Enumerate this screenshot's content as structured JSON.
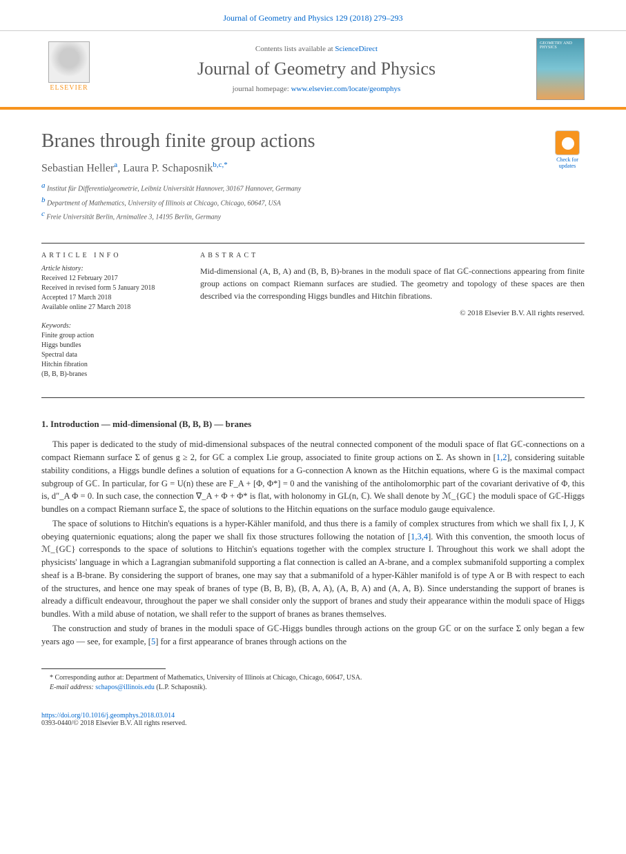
{
  "header": {
    "journal_ref": "Journal of Geometry and Physics 129 (2018) 279–293",
    "contents_text": "Contents lists available at ",
    "contents_link": "ScienceDirect",
    "journal_name": "Journal of Geometry and Physics",
    "homepage_label": "journal homepage: ",
    "homepage_url": "www.elsevier.com/locate/geomphys",
    "publisher": "ELSEVIER",
    "cover_label": "GEOMETRY AND PHYSICS"
  },
  "updates": {
    "text": "Check for updates"
  },
  "paper": {
    "title": "Branes through finite group actions",
    "authors": [
      {
        "name": "Sebastian Heller",
        "sup": "a"
      },
      {
        "name": "Laura P. Schaposnik",
        "sup": "b,c,*"
      }
    ],
    "affiliations": [
      "Institut für Differentialgeometrie, Leibniz Universität Hannover, 30167 Hannover, Germany",
      "Department of Mathematics, University of Illinois at Chicago, Chicago, 60647, USA",
      "Freie Universität Berlin, Arnimallee 3, 14195 Berlin, Germany"
    ],
    "aff_markers": [
      "a",
      "b",
      "c"
    ]
  },
  "meta": {
    "info_head": "ARTICLE INFO",
    "abstract_head": "ABSTRACT",
    "history_head": "Article history:",
    "history": [
      "Received 12 February 2017",
      "Received in revised form 5 January 2018",
      "Accepted 17 March 2018",
      "Available online 27 March 2018"
    ],
    "keywords_head": "Keywords:",
    "keywords": [
      "Finite group action",
      "Higgs bundles",
      "Spectral data",
      "Hitchin fibration",
      "(B, B, B)-branes"
    ],
    "abstract": "Mid-dimensional (A, B, A) and (B, B, B)-branes in the moduli space of flat Gℂ-connections appearing from finite group actions on compact Riemann surfaces are studied. The geometry and topology of these spaces are then described via the corresponding Higgs bundles and Hitchin fibrations.",
    "copyright": "© 2018 Elsevier B.V. All rights reserved."
  },
  "body": {
    "section_title": "1. Introduction — mid-dimensional (B, B, B) — branes",
    "p1": "This paper is dedicated to the study of mid-dimensional subspaces  of the neutral connected component of the moduli space of flat Gℂ-connections on a compact Riemann surface Σ of genus g ≥ 2, for Gℂ a complex Lie group, associated to finite group actions on Σ. As shown in [1,2], considering suitable stability conditions, a Higgs bundle defines a solution of equations for a G-connection A known as the Hitchin equations, where G is the maximal compact subgroup of Gℂ. In particular, for G = U(n) these are F_A + [Φ, Φ*] = 0 and the vanishing of the antiholomorphic part of the covariant derivative of Φ, this is, d″_A Φ = 0. In such case, the connection ∇_A + Φ + Φ* is flat, with holonomy in GL(n, ℂ). We shall denote by ℳ_{Gℂ} the moduli space of Gℂ-Higgs bundles on a compact Riemann surface Σ, the space of solutions to the Hitchin equations on the surface modulo gauge equivalence.",
    "p2": "The space of solutions to Hitchin's equations is a hyper-Kähler manifold, and thus there is a family of complex structures from which we shall fix I, J, K obeying quaternionic equations; along the paper we shall fix those structures following the notation of [1,3,4]. With this convention, the smooth locus of ℳ_{Gℂ} corresponds to the space of solutions to Hitchin's equations together with the complex structure I. Throughout this work we shall adopt the physicists' language in which a Lagrangian submanifold supporting a flat connection is called an A-brane, and a complex submanifold supporting a complex sheaf is a B-brane. By considering the support of branes, one may say that a submanifold of a hyper-Kähler manifold is of type A or B with respect to each of the structures, and hence one may speak of branes of type (B, B, B), (B, A, A), (A, B, A) and (A, A, B). Since understanding the support of branes is already a difficult endeavour, throughout the paper we shall consider only the support of branes and study their appearance within the moduli space of Higgs bundles. With a mild abuse of notation, we shall refer to the support of branes as branes themselves.",
    "p3": "The construction and study of branes in the moduli space of Gℂ-Higgs bundles through actions on the group Gℂ or on the surface Σ only began a few years ago — see, for example, [5] for a first appearance of branes through actions on the"
  },
  "footnote": {
    "corr": "* Corresponding author at: Department of Mathematics, University of Illinois at Chicago, Chicago, 60647, USA.",
    "email_label": "E-mail address: ",
    "email": "schapos@illinois.edu",
    "email_name": " (L.P. Schaposnik)."
  },
  "footer": {
    "doi": "https://doi.org/10.1016/j.geomphys.2018.03.014",
    "issn": "0393-0440/© 2018 Elsevier B.V. All rights reserved."
  },
  "refs": {
    "r1": "1",
    "r2": "2",
    "r3": "3",
    "r4": "4",
    "r5": "5"
  },
  "colors": {
    "link": "#0066cc",
    "accent": "#f7941e",
    "text": "#333333",
    "muted": "#5a5a5a"
  }
}
